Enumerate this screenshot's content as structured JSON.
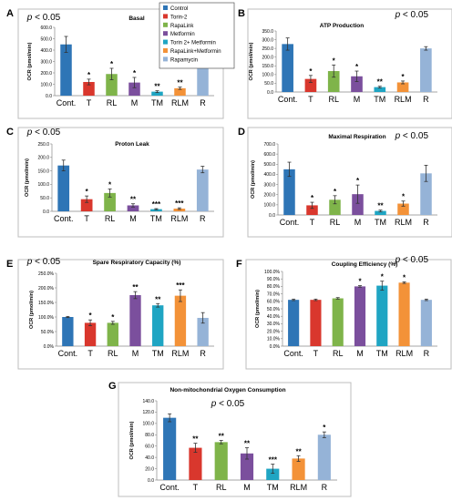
{
  "figure": {
    "categories": [
      "Cont.",
      "T",
      "RL",
      "M",
      "TM",
      "RLM",
      "R"
    ],
    "significance": "p < 0.05",
    "ylabel": "OCR (pmol/min)",
    "colors": [
      "#2e75b6",
      "#d9372d",
      "#7fb44a",
      "#7b4f9d",
      "#1fa5c3",
      "#f39238",
      "#95b3d7"
    ],
    "legend": {
      "placement": "top-center, inside panel A",
      "items": [
        "Control",
        "Torin-2",
        "RapaLink",
        "Metformin",
        "Torin 2+ Metformin",
        "RapaLink+Metformin",
        "Rapamycin"
      ]
    }
  },
  "chart_data": [
    {
      "panel": "A",
      "type": "bar",
      "title": "Basal",
      "ylabel": "OCR (pmol/min)",
      "categories": [
        "Cont.",
        "T",
        "RL",
        "M",
        "TM",
        "RLM",
        "R"
      ],
      "values": [
        450,
        120,
        190,
        115,
        35,
        65,
        410
      ],
      "errors": [
        70,
        25,
        50,
        45,
        8,
        10,
        20
      ],
      "stars": [
        "",
        "*",
        "*",
        "*",
        "**",
        "**",
        ""
      ],
      "ylim": [
        0,
        600
      ],
      "yticks": [
        0,
        100,
        200,
        300,
        400,
        500,
        600
      ],
      "ytick_labels": [
        "0.0",
        "100.0",
        "200.0",
        "300.0",
        "400.0",
        "500.0",
        "600.0"
      ],
      "grid": false,
      "pvalue": "p < 0.05",
      "pvalue_position": "top-left"
    },
    {
      "panel": "B",
      "type": "bar",
      "title": "ATP Production",
      "ylabel": "OCR (pmol/min)",
      "categories": [
        "Cont.",
        "T",
        "RL",
        "M",
        "TM",
        "RLM",
        "R"
      ],
      "values": [
        275,
        75,
        120,
        90,
        28,
        55,
        250
      ],
      "errors": [
        35,
        20,
        35,
        30,
        5,
        8,
        10
      ],
      "stars": [
        "",
        "*",
        "*",
        "*",
        "**",
        "*",
        ""
      ],
      "ylim": [
        0,
        350
      ],
      "yticks": [
        0,
        50,
        100,
        150,
        200,
        250,
        300,
        350
      ],
      "ytick_labels": [
        "0.0",
        "50.0",
        "100.0",
        "150.0",
        "200.0",
        "250.0",
        "300.0",
        "350.0"
      ],
      "grid": false,
      "pvalue": "p < 0.05",
      "pvalue_position": "top-right"
    },
    {
      "panel": "C",
      "type": "bar",
      "title": "Proton Leak",
      "ylabel": "OCR (pmol/min)",
      "categories": [
        "Cont.",
        "T",
        "RL",
        "M",
        "TM",
        "RLM",
        "R"
      ],
      "values": [
        170,
        45,
        68,
        22,
        8,
        10,
        155
      ],
      "errors": [
        20,
        12,
        15,
        6,
        2,
        3,
        12
      ],
      "stars": [
        "",
        "*",
        "*",
        "**",
        "***",
        "***",
        ""
      ],
      "ylim": [
        0,
        250
      ],
      "yticks": [
        0,
        50,
        100,
        150,
        200,
        250
      ],
      "ytick_labels": [
        "0.0",
        "50.0",
        "100.0",
        "150.0",
        "200.0",
        "250.0"
      ],
      "grid": false,
      "pvalue": "p < 0.05",
      "pvalue_position": "top-left"
    },
    {
      "panel": "D",
      "type": "bar",
      "title": "Maximal Respiration",
      "ylabel": "OCR (pmol/min)",
      "categories": [
        "Cont.",
        "T",
        "RL",
        "M",
        "TM",
        "RLM",
        "R"
      ],
      "values": [
        450,
        95,
        150,
        205,
        40,
        112,
        410
      ],
      "errors": [
        70,
        30,
        40,
        90,
        8,
        25,
        80
      ],
      "stars": [
        "",
        "*",
        "*",
        "*",
        "**",
        "*",
        ""
      ],
      "ylim": [
        0,
        700
      ],
      "yticks": [
        0,
        100,
        200,
        300,
        400,
        500,
        600,
        700
      ],
      "ytick_labels": [
        "0.0",
        "100.0",
        "200.0",
        "300.0",
        "400.0",
        "500.0",
        "600.0",
        "700.0"
      ],
      "grid": false,
      "pvalue": "p < 0.05",
      "pvalue_position": "top-right"
    },
    {
      "panel": "E",
      "type": "bar",
      "title": "Spare Respiratory Capacity (%)",
      "ylabel": "OCR (pmol/min)",
      "categories": [
        "Cont.",
        "T",
        "RL",
        "M",
        "TM",
        "RLM",
        "R"
      ],
      "values": [
        100,
        80,
        80,
        175,
        140,
        173,
        97
      ],
      "errors": [
        2,
        10,
        5,
        12,
        6,
        20,
        18
      ],
      "stars": [
        "",
        "*",
        "*",
        "**",
        "**",
        "***",
        ""
      ],
      "ylim": [
        0,
        250
      ],
      "yticks": [
        0,
        50,
        100,
        150,
        200,
        250
      ],
      "ytick_labels": [
        "0.0%",
        "50.0%",
        "100.0%",
        "150.0%",
        "200.0%",
        "250.0%"
      ],
      "grid": false,
      "pvalue": "p < 0.05",
      "pvalue_position": "top-left"
    },
    {
      "panel": "F",
      "type": "bar",
      "title": "Coupling Efficiency (%)",
      "ylabel": "OCR (pmol/min)",
      "categories": [
        "Cont.",
        "T",
        "RL",
        "M",
        "TM",
        "RLM",
        "R"
      ],
      "values": [
        62,
        62,
        64,
        80,
        81,
        85,
        62
      ],
      "errors": [
        1,
        1,
        1,
        1,
        6,
        1,
        1
      ],
      "stars": [
        "",
        "",
        "",
        "*",
        "*",
        "*",
        ""
      ],
      "ylim": [
        0,
        100
      ],
      "yticks": [
        0,
        10,
        20,
        30,
        40,
        50,
        60,
        70,
        80,
        90,
        100
      ],
      "ytick_labels": [
        "0.0%",
        "10.0%",
        "20.0%",
        "30.0%",
        "40.0%",
        "50.0%",
        "60.0%",
        "70.0%",
        "80.0%",
        "90.0%",
        "100.0%"
      ],
      "grid": false,
      "pvalue": "p < 0.05",
      "pvalue_position": "top-right"
    },
    {
      "panel": "G",
      "type": "bar",
      "title": "Non-mitochondrial Oxygen Consumption",
      "ylabel": "OCR (pmol/min)",
      "categories": [
        "Cont.",
        "T",
        "RL",
        "M",
        "TM",
        "RLM",
        "R"
      ],
      "values": [
        110,
        57,
        67,
        47,
        20,
        38,
        80
      ],
      "errors": [
        7,
        8,
        3,
        10,
        8,
        5,
        5
      ],
      "stars": [
        "",
        "**",
        "**",
        "**",
        "***",
        "**",
        "*"
      ],
      "ylim": [
        0,
        140
      ],
      "yticks": [
        0,
        20,
        40,
        60,
        80,
        100,
        120,
        140
      ],
      "ytick_labels": [
        "0.0",
        "20.0",
        "40.0",
        "60.0",
        "80.0",
        "100.0",
        "120.0",
        "140.0"
      ],
      "grid": false,
      "pvalue": "p < 0.05",
      "pvalue_position": "top-center"
    }
  ]
}
